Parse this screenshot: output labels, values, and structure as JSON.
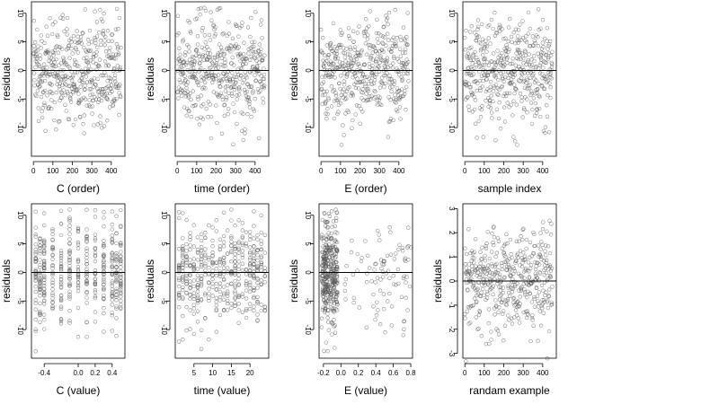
{
  "chart_data": [
    {
      "type": "scatter",
      "xlabel": "C (order)",
      "ylabel": "residuals",
      "xlim": [
        -10,
        470
      ],
      "ylim": [
        -15,
        12
      ],
      "xticks": [
        0,
        100,
        200,
        300,
        400
      ],
      "xtick_labels": [
        "0",
        "100",
        "200",
        "300",
        "400"
      ],
      "yticks": [
        -10,
        -5,
        0,
        5,
        10
      ],
      "ytick_labels": [
        "-10",
        "-5",
        "0",
        "5",
        "10"
      ],
      "hline": 0,
      "x_gen": "index",
      "y_gen": "residual",
      "n_points": 450,
      "seed": 1
    },
    {
      "type": "scatter",
      "xlabel": "time (order)",
      "ylabel": "residuals",
      "xlim": [
        -10,
        470
      ],
      "ylim": [
        -15,
        12
      ],
      "xticks": [
        0,
        100,
        200,
        300,
        400
      ],
      "xtick_labels": [
        "0",
        "100",
        "200",
        "300",
        "400"
      ],
      "yticks": [
        -10,
        -5,
        0,
        5,
        10
      ],
      "ytick_labels": [
        "-10",
        "-5",
        "0",
        "5",
        "10"
      ],
      "hline": 0,
      "x_gen": "index",
      "y_gen": "residual",
      "n_points": 450,
      "seed": 2
    },
    {
      "type": "scatter",
      "xlabel": "E (order)",
      "ylabel": "residuals",
      "xlim": [
        -10,
        470
      ],
      "ylim": [
        -15,
        12
      ],
      "xticks": [
        0,
        100,
        200,
        300,
        400
      ],
      "xtick_labels": [
        "0",
        "100",
        "200",
        "300",
        "400"
      ],
      "yticks": [
        -10,
        -5,
        0,
        5,
        10
      ],
      "ytick_labels": [
        "-10",
        "-5",
        "0",
        "5",
        "10"
      ],
      "hline": 0,
      "x_gen": "index",
      "y_gen": "residual",
      "n_points": 450,
      "seed": 3
    },
    {
      "type": "scatter",
      "xlabel": "sample index",
      "ylabel": "residuals",
      "xlim": [
        -10,
        470
      ],
      "ylim": [
        -15,
        12
      ],
      "xticks": [
        0,
        100,
        200,
        300,
        400
      ],
      "xtick_labels": [
        "0",
        "100",
        "200",
        "300",
        "400"
      ],
      "yticks": [
        -10,
        -5,
        0,
        5,
        10
      ],
      "ytick_labels": [
        "-10",
        "-5",
        "0",
        "5",
        "10"
      ],
      "hline": 0,
      "x_gen": "index",
      "y_gen": "residual",
      "n_points": 450,
      "seed": 4
    },
    {
      "type": "scatter",
      "xlabel": "C (value)",
      "ylabel": "residuals",
      "xlim": [
        -0.55,
        0.55
      ],
      "ylim": [
        -15,
        12
      ],
      "xticks": [
        -0.4,
        0,
        0.2,
        0.4
      ],
      "xtick_labels": [
        "-0.4",
        "0.0",
        "0.2",
        "0.4"
      ],
      "yticks": [
        -10,
        -5,
        0,
        5,
        10
      ],
      "ytick_labels": [
        "-10",
        "-5",
        "0",
        "5",
        "10"
      ],
      "hline": 0,
      "x_gen": "levels",
      "x_levels": [
        -0.5,
        -0.45,
        -0.4,
        -0.3,
        -0.2,
        -0.1,
        0.0,
        0.1,
        0.2,
        0.3,
        0.4,
        0.45,
        0.5
      ],
      "y_gen": "residual",
      "n_points": 450,
      "seed": 5
    },
    {
      "type": "scatter",
      "xlabel": "time (value)",
      "ylabel": "residuals",
      "xlim": [
        0,
        25
      ],
      "ylim": [
        -15,
        12
      ],
      "xticks": [
        5,
        10,
        15,
        20
      ],
      "xtick_labels": [
        "5",
        "10",
        "15",
        "20"
      ],
      "yticks": [
        -10,
        -5,
        0,
        5,
        10
      ],
      "ytick_labels": [
        "-10",
        "-5",
        "0",
        "5",
        "10"
      ],
      "hline": 0,
      "x_gen": "levels",
      "x_levels": [
        1,
        2,
        3,
        4,
        5,
        6,
        7,
        8,
        9,
        10,
        11,
        12,
        13,
        14,
        15,
        16,
        17,
        18,
        19,
        20,
        21,
        22,
        23,
        24
      ],
      "y_gen": "residual",
      "n_points": 450,
      "seed": 6
    },
    {
      "type": "scatter",
      "xlabel": "E (value)",
      "ylabel": "residuals",
      "xlim": [
        -0.25,
        0.82
      ],
      "ylim": [
        -15,
        12
      ],
      "xticks": [
        -0.2,
        0,
        0.2,
        0.4,
        0.6,
        0.8
      ],
      "xtick_labels": [
        "-0.2",
        "0.0",
        "0.2",
        "0.4",
        "0.6",
        "0.8"
      ],
      "yticks": [
        -10,
        -5,
        0,
        5,
        10
      ],
      "ytick_labels": [
        "-10",
        "-5",
        "0",
        "5",
        "10"
      ],
      "hline": 0,
      "x_gen": "skewed",
      "y_gen": "residual",
      "n_points": 450,
      "seed": 7
    },
    {
      "type": "scatter",
      "xlabel": "randam example",
      "ylabel": "residuals",
      "xlim": [
        -10,
        470
      ],
      "ylim": [
        -3.2,
        3.2
      ],
      "xticks": [
        0,
        100,
        200,
        300,
        400
      ],
      "xtick_labels": [
        "0",
        "100",
        "200",
        "300",
        "400"
      ],
      "yticks": [
        -3,
        -2,
        -1,
        0,
        1,
        2,
        3
      ],
      "ytick_labels": [
        "-3",
        "-2",
        "-1",
        "0",
        "1",
        "2",
        "3"
      ],
      "hline": 0,
      "x_gen": "index",
      "y_gen": "normal",
      "n_points": 450,
      "seed": 8
    }
  ]
}
